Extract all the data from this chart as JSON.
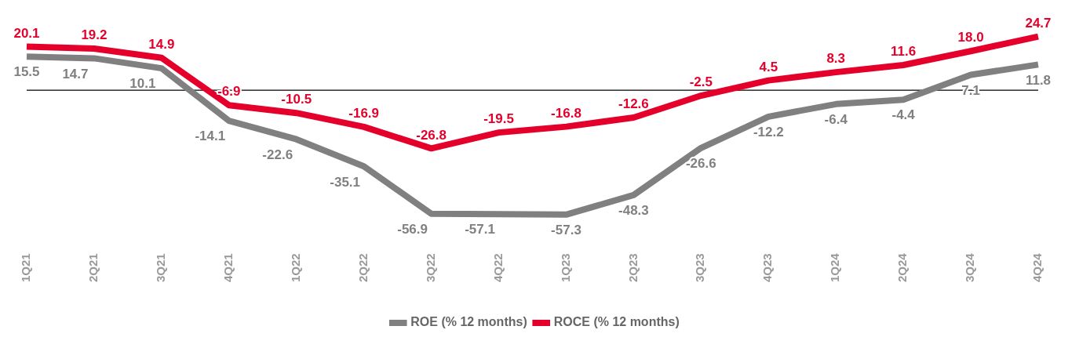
{
  "chart_data": {
    "type": "line",
    "categories": [
      "1Q21",
      "2Q21",
      "3Q21",
      "4Q21",
      "1Q22",
      "2Q22",
      "3Q22",
      "4Q22",
      "1Q23",
      "2Q23",
      "3Q23",
      "4Q23",
      "1Q24",
      "2Q24",
      "3Q24",
      "4Q24"
    ],
    "series": [
      {
        "name": "ROE (% 12 months)",
        "color": "#808080",
        "values": [
          15.5,
          14.7,
          10.1,
          -14.1,
          -22.6,
          -35.1,
          -56.9,
          -57.1,
          -57.3,
          -48.3,
          -26.6,
          -12.2,
          -6.4,
          -4.4,
          7.1,
          11.8
        ],
        "value_labels": [
          "15.5",
          "14.7",
          "10.1",
          "-14.1",
          "-22.6",
          "-35.1",
          "-56.9",
          "-57.1",
          "-57.3",
          "-48.3",
          "-26.6",
          "-12.2",
          "-6.4",
          "-4.4",
          "7.1",
          "11.8"
        ]
      },
      {
        "name": "ROCE (% 12 months)",
        "color": "#e4002b",
        "values": [
          20.1,
          19.2,
          14.9,
          -6.9,
          -10.5,
          -16.9,
          -26.8,
          -19.5,
          -16.8,
          -12.6,
          -2.5,
          4.5,
          8.3,
          11.6,
          18.0,
          24.7
        ],
        "value_labels": [
          "20.1",
          "19.2",
          "14.9",
          "-6.9",
          "-10.5",
          "-16.9",
          "-26.8",
          "-19.5",
          "-16.8",
          "-12.6",
          "-2.5",
          "4.5",
          "8.3",
          "11.6",
          "18.0",
          "24.7"
        ]
      }
    ],
    "legend": "bottom",
    "marker": "none",
    "grid": false,
    "ref_lines": [
      {
        "axis": "y",
        "value": 0,
        "color": "#000000"
      }
    ]
  }
}
